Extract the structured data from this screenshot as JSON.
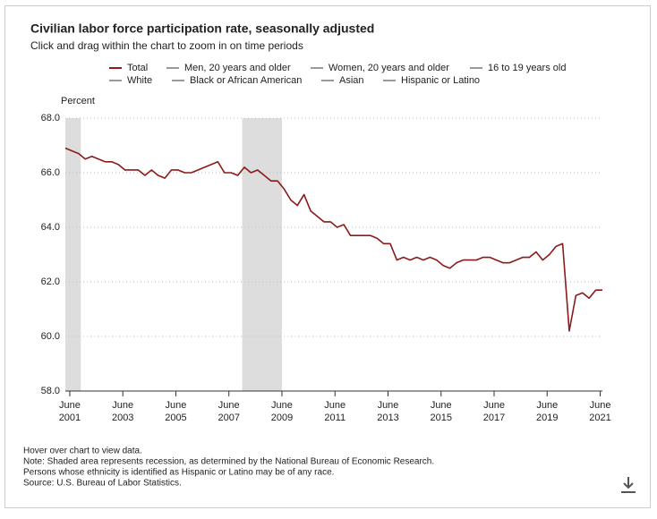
{
  "chart_data": {
    "type": "line",
    "title": "Civilian labor force participation rate, seasonally adjusted",
    "subtitle": "Click and drag within the chart to zoom in on time periods",
    "y_label": "Percent",
    "x": [
      "2001-04",
      "2001-07",
      "2001-10",
      "2002-01",
      "2002-04",
      "2002-07",
      "2002-10",
      "2003-01",
      "2003-04",
      "2003-07",
      "2003-10",
      "2004-01",
      "2004-04",
      "2004-07",
      "2004-10",
      "2005-01",
      "2005-04",
      "2005-07",
      "2005-10",
      "2006-01",
      "2006-04",
      "2006-07",
      "2006-10",
      "2007-01",
      "2007-04",
      "2007-07",
      "2007-10",
      "2008-01",
      "2008-04",
      "2008-07",
      "2008-10",
      "2009-01",
      "2009-04",
      "2009-07",
      "2009-10",
      "2010-01",
      "2010-04",
      "2010-07",
      "2010-10",
      "2011-01",
      "2011-04",
      "2011-07",
      "2011-10",
      "2012-01",
      "2012-04",
      "2012-07",
      "2012-10",
      "2013-01",
      "2013-04",
      "2013-07",
      "2013-10",
      "2014-01",
      "2014-04",
      "2014-07",
      "2014-10",
      "2015-01",
      "2015-04",
      "2015-07",
      "2015-10",
      "2016-01",
      "2016-04",
      "2016-07",
      "2016-10",
      "2017-01",
      "2017-04",
      "2017-07",
      "2017-10",
      "2018-01",
      "2018-04",
      "2018-07",
      "2018-10",
      "2019-01",
      "2019-04",
      "2019-07",
      "2019-10",
      "2020-01",
      "2020-04",
      "2020-07",
      "2020-10",
      "2021-01",
      "2021-04",
      "2021-07"
    ],
    "series": [
      {
        "name": "Total",
        "color": "#8b1a1a",
        "values": [
          66.9,
          66.8,
          66.7,
          66.5,
          66.6,
          66.5,
          66.4,
          66.4,
          66.3,
          66.1,
          66.1,
          66.1,
          65.9,
          66.1,
          65.9,
          65.8,
          66.1,
          66.1,
          66.0,
          66.0,
          66.1,
          66.2,
          66.3,
          66.4,
          66.0,
          66.0,
          65.9,
          66.2,
          66.0,
          66.1,
          65.9,
          65.7,
          65.7,
          65.4,
          65.0,
          64.8,
          65.2,
          64.6,
          64.4,
          64.2,
          64.2,
          64.0,
          64.1,
          63.7,
          63.7,
          63.7,
          63.7,
          63.6,
          63.4,
          63.4,
          62.8,
          62.9,
          62.8,
          62.9,
          62.8,
          62.9,
          62.8,
          62.6,
          62.5,
          62.7,
          62.8,
          62.8,
          62.8,
          62.9,
          62.9,
          62.8,
          62.7,
          62.7,
          62.8,
          62.9,
          62.9,
          63.1,
          62.8,
          63.0,
          63.3,
          63.4,
          60.2,
          61.5,
          61.6,
          61.4,
          61.7,
          61.7
        ]
      }
    ],
    "other_legend": [
      {
        "name": "Men, 20 years and older",
        "color": "#999999"
      },
      {
        "name": "Women, 20 years and older",
        "color": "#999999"
      },
      {
        "name": "16 to 19 years old",
        "color": "#999999"
      },
      {
        "name": "White",
        "color": "#999999"
      },
      {
        "name": "Black or African American",
        "color": "#999999"
      },
      {
        "name": "Asian",
        "color": "#999999"
      },
      {
        "name": "Hispanic or Latino",
        "color": "#999999"
      }
    ],
    "recessions": [
      [
        "2001-03",
        "2001-11"
      ],
      [
        "2007-12",
        "2009-06"
      ]
    ],
    "recession_color": "#dddddd",
    "xlim": [
      "2001-04",
      "2021-07"
    ],
    "xticks": [
      {
        "value": "2001-06",
        "label": [
          "June",
          "2001"
        ]
      },
      {
        "value": "2003-06",
        "label": [
          "June",
          "2003"
        ]
      },
      {
        "value": "2005-06",
        "label": [
          "June",
          "2005"
        ]
      },
      {
        "value": "2007-06",
        "label": [
          "June",
          "2007"
        ]
      },
      {
        "value": "2009-06",
        "label": [
          "June",
          "2009"
        ]
      },
      {
        "value": "2011-06",
        "label": [
          "June",
          "2011"
        ]
      },
      {
        "value": "2013-06",
        "label": [
          "June",
          "2013"
        ]
      },
      {
        "value": "2015-06",
        "label": [
          "June",
          "2015"
        ]
      },
      {
        "value": "2017-06",
        "label": [
          "June",
          "2017"
        ]
      },
      {
        "value": "2019-06",
        "label": [
          "June",
          "2019"
        ]
      },
      {
        "value": "2021-06",
        "label": [
          "June",
          "2021"
        ]
      }
    ],
    "ylim": [
      58,
      68
    ],
    "yticks": [
      {
        "value": 58,
        "label": "58.0"
      },
      {
        "value": 60,
        "label": "60.0"
      },
      {
        "value": 62,
        "label": "62.0"
      },
      {
        "value": 64,
        "label": "64.0"
      },
      {
        "value": 66,
        "label": "66.0"
      },
      {
        "value": 68,
        "label": "68.0"
      }
    ],
    "grid": true,
    "notes": [
      "Hover over chart to view data.",
      "Note: Shaded area represents recession, as determined by the National Bureau of Economic Research.",
      "Persons whose ethnicity is identified as Hispanic or Latino may be of any race.",
      "Source: U.S. Bureau of Labor Statistics."
    ]
  }
}
